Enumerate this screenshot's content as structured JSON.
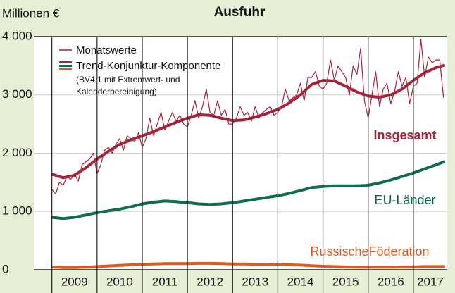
{
  "chart_data": {
    "type": "line",
    "title": "Ausfuhr",
    "y_label": "Millionen €",
    "xlim": [
      2008.6,
      2017.75
    ],
    "ylim": [
      0,
      4000
    ],
    "yticks": [
      0,
      {
        "value": 1000,
        "label": "1 000"
      },
      {
        "value": 2000,
        "label": "2 000"
      },
      {
        "value": 3000,
        "label": "3 000"
      },
      {
        "value": 4000,
        "label": "4 000"
      }
    ],
    "xticks": [
      {
        "value": 2009,
        "label": "2009"
      },
      {
        "value": 2010,
        "label": "2010"
      },
      {
        "value": 2011,
        "label": "2011"
      },
      {
        "value": 2012,
        "label": "2012"
      },
      {
        "value": 2013,
        "label": "2013"
      },
      {
        "value": 2014,
        "label": "2014"
      },
      {
        "value": 2015,
        "label": "2015"
      },
      {
        "value": 2016,
        "label": "2016"
      },
      {
        "value": 2017,
        "label": "2017"
      }
    ],
    "grid": true,
    "trend_label": "Trend-Konjunktur-Komponente",
    "trend_note": [
      "(BV4.1 mit Extremwert- und",
      "Kalenderbereinigung)"
    ],
    "series": [
      {
        "name": "Monatswerte",
        "color": "#a3243b",
        "x": [
          2009,
          2009.083,
          2009.167,
          2009.25,
          2009.333,
          2009.417,
          2009.5,
          2009.583,
          2009.667,
          2009.75,
          2009.833,
          2009.917,
          2010,
          2010.083,
          2010.167,
          2010.25,
          2010.333,
          2010.417,
          2010.5,
          2010.583,
          2010.667,
          2010.75,
          2010.833,
          2010.917,
          2011,
          2011.083,
          2011.167,
          2011.25,
          2011.333,
          2011.417,
          2011.5,
          2011.583,
          2011.667,
          2011.75,
          2011.833,
          2011.917,
          2012,
          2012.083,
          2012.167,
          2012.25,
          2012.333,
          2012.417,
          2012.5,
          2012.583,
          2012.667,
          2012.75,
          2012.833,
          2012.917,
          2013,
          2013.083,
          2013.167,
          2013.25,
          2013.333,
          2013.417,
          2013.5,
          2013.583,
          2013.667,
          2013.75,
          2013.833,
          2013.917,
          2014,
          2014.083,
          2014.167,
          2014.25,
          2014.333,
          2014.417,
          2014.5,
          2014.583,
          2014.667,
          2014.75,
          2014.833,
          2014.917,
          2015,
          2015.083,
          2015.167,
          2015.25,
          2015.333,
          2015.417,
          2015.5,
          2015.583,
          2015.667,
          2015.75,
          2015.833,
          2015.917,
          2016,
          2016.083,
          2016.167,
          2016.25,
          2016.333,
          2016.417,
          2016.5,
          2016.583,
          2016.667,
          2016.75,
          2016.833,
          2016.917,
          2017,
          2017.083,
          2017.167,
          2017.25,
          2017.333,
          2017.417,
          2017.5,
          2017.583,
          2017.667
        ],
        "values": [
          1380,
          1300,
          1500,
          1450,
          1600,
          1550,
          1650,
          1520,
          1800,
          1850,
          1900,
          2000,
          1650,
          1800,
          2050,
          2100,
          2000,
          2150,
          2250,
          2050,
          2300,
          2250,
          2200,
          2350,
          2100,
          2250,
          2600,
          2300,
          2500,
          2700,
          2400,
          2550,
          2700,
          2550,
          2650,
          2500,
          2450,
          2650,
          2900,
          2600,
          2800,
          3100,
          2700,
          2650,
          2900,
          2650,
          2750,
          2500,
          2500,
          2600,
          2800,
          2650,
          2700,
          2550,
          2800,
          2600,
          2700,
          2750,
          2800,
          2650,
          2700,
          2800,
          3100,
          2900,
          2950,
          3000,
          3200,
          2900,
          3300,
          3300,
          3400,
          3150,
          3100,
          3200,
          3600,
          3250,
          3500,
          3400,
          3300,
          3000,
          3500,
          3350,
          3800,
          2900,
          2600,
          3000,
          3400,
          2800,
          3100,
          3200,
          2850,
          3050,
          3400,
          3150,
          3300,
          2850,
          3150,
          3200,
          3950,
          3300,
          3650,
          3550,
          3600,
          3600,
          2950
        ]
      },
      {
        "name": "Insgesamt",
        "color": "#a3243b",
        "x": [
          2009,
          2009.25,
          2009.5,
          2009.75,
          2010,
          2010.25,
          2010.5,
          2010.75,
          2011,
          2011.25,
          2011.5,
          2011.75,
          2012,
          2012.25,
          2012.5,
          2012.75,
          2013,
          2013.25,
          2013.5,
          2013.75,
          2014,
          2014.25,
          2014.5,
          2014.75,
          2015,
          2015.25,
          2015.5,
          2015.75,
          2016,
          2016.25,
          2016.5,
          2016.75,
          2017,
          2017.25,
          2017.5,
          2017.7
        ],
        "values": [
          1640,
          1580,
          1620,
          1750,
          1900,
          2030,
          2150,
          2230,
          2300,
          2370,
          2450,
          2530,
          2600,
          2660,
          2650,
          2600,
          2560,
          2570,
          2620,
          2680,
          2750,
          2860,
          3000,
          3180,
          3250,
          3240,
          3150,
          3050,
          2980,
          2960,
          3000,
          3100,
          3250,
          3380,
          3470,
          3510
        ]
      },
      {
        "name": "EU-Länder",
        "color": "#0f6b4f",
        "x": [
          2009,
          2009.25,
          2009.5,
          2009.75,
          2010,
          2010.25,
          2010.5,
          2010.75,
          2011,
          2011.25,
          2011.5,
          2011.75,
          2012,
          2012.25,
          2012.5,
          2012.75,
          2013,
          2013.25,
          2013.5,
          2013.75,
          2014,
          2014.25,
          2014.5,
          2014.75,
          2015,
          2015.25,
          2015.5,
          2015.75,
          2016,
          2016.25,
          2016.5,
          2016.75,
          2017,
          2017.25,
          2017.5,
          2017.7
        ],
        "values": [
          900,
          880,
          900,
          940,
          980,
          1010,
          1040,
          1080,
          1130,
          1160,
          1180,
          1170,
          1150,
          1130,
          1120,
          1130,
          1150,
          1180,
          1210,
          1240,
          1270,
          1310,
          1360,
          1410,
          1430,
          1440,
          1440,
          1440,
          1450,
          1490,
          1540,
          1600,
          1660,
          1730,
          1800,
          1860
        ]
      },
      {
        "name": "RussischeFöderation",
        "color": "#e05a1e",
        "x": [
          2009,
          2009.25,
          2009.5,
          2009.75,
          2010,
          2010.25,
          2010.5,
          2010.75,
          2011,
          2011.25,
          2011.5,
          2011.75,
          2012,
          2012.25,
          2012.5,
          2012.75,
          2013,
          2013.25,
          2013.5,
          2013.75,
          2014,
          2014.25,
          2014.5,
          2014.75,
          2015,
          2015.25,
          2015.5,
          2015.75,
          2016,
          2016.25,
          2016.5,
          2016.75,
          2017,
          2017.25,
          2017.5,
          2017.7
        ],
        "values": [
          50,
          40,
          40,
          45,
          55,
          65,
          75,
          85,
          95,
          100,
          105,
          105,
          105,
          110,
          110,
          105,
          100,
          100,
          95,
          95,
          90,
          85,
          80,
          70,
          60,
          55,
          50,
          45,
          45,
          45,
          45,
          50,
          50,
          55,
          55,
          55
        ]
      }
    ]
  }
}
